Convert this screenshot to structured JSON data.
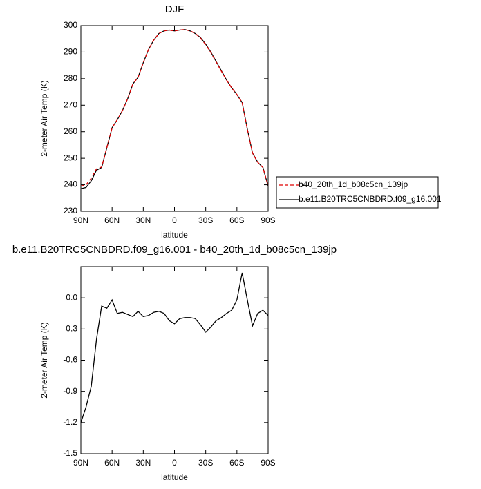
{
  "chart_data": [
    {
      "type": "line",
      "title": "DJF",
      "xlabel": "latitude",
      "ylabel": "2-meter Air Temp (K)",
      "x": [
        90,
        85,
        80,
        75,
        70,
        65,
        60,
        55,
        50,
        45,
        40,
        35,
        30,
        25,
        20,
        15,
        10,
        5,
        0,
        -5,
        -10,
        -15,
        -20,
        -25,
        -30,
        -35,
        -40,
        -45,
        -50,
        -55,
        -60,
        -65,
        -70,
        -75,
        -80,
        -85,
        -90
      ],
      "series": [
        {
          "name": "b40_20th_1d_b08c5cn_139jp",
          "color": "#e00000",
          "dash": true,
          "values": [
            239.5,
            240,
            242.5,
            246,
            246.7,
            254,
            261.5,
            264.5,
            268,
            272.5,
            278,
            280.5,
            286,
            291,
            294.5,
            297,
            298,
            298.3,
            298,
            298.3,
            298.5,
            298,
            297,
            295.3,
            292.8,
            289.8,
            286.3,
            282.8,
            279.5,
            276.5,
            274,
            271,
            261,
            252,
            248.5,
            246.5,
            239.5
          ]
        },
        {
          "name": "b.e11.B20TRC5CNBDRD.f09_g16.001",
          "color": "#000000",
          "dash": false,
          "values": [
            238.5,
            239,
            241.5,
            245.5,
            246.5,
            254,
            261.5,
            264.5,
            268,
            272.5,
            278,
            280.5,
            286,
            291,
            294.5,
            297,
            298,
            298.3,
            298,
            298.3,
            298.5,
            298,
            297,
            295.5,
            293,
            290,
            286.5,
            283,
            279.5,
            276.5,
            274,
            271,
            261,
            252,
            248.5,
            246.5,
            239.5
          ]
        }
      ],
      "xlim": [
        90,
        -90
      ],
      "xticks": [
        {
          "value": 90,
          "label": "90N"
        },
        {
          "value": 60,
          "label": "60N"
        },
        {
          "value": 30,
          "label": "30N"
        },
        0,
        {
          "value": -30,
          "label": "30S"
        },
        {
          "value": -60,
          "label": "60S"
        },
        {
          "value": -90,
          "label": "90S"
        }
      ],
      "ylim": [
        230,
        300
      ],
      "yticks": [
        230,
        240,
        250,
        260,
        270,
        280,
        290,
        300
      ],
      "legend": "right"
    },
    {
      "type": "line",
      "title": "b.e11.B20TRC5CNBDRD.f09_g16.001 - b40_20th_1d_b08c5cn_139jp",
      "xlabel": "latitude",
      "ylabel": "2-meter Air Temp (K)",
      "x": [
        90,
        85,
        80,
        75,
        70,
        65,
        60,
        55,
        50,
        45,
        40,
        35,
        30,
        25,
        20,
        15,
        10,
        5,
        0,
        -5,
        -10,
        -15,
        -20,
        -25,
        -30,
        -35,
        -40,
        -45,
        -50,
        -55,
        -60,
        -65,
        -70,
        -75,
        -80,
        -85,
        -90
      ],
      "series": [
        {
          "color": "#000000",
          "dash": false,
          "values": [
            -1.2,
            -1.05,
            -0.85,
            -0.4,
            -0.08,
            -0.1,
            -0.02,
            -0.15,
            -0.14,
            -0.16,
            -0.18,
            -0.13,
            -0.18,
            -0.17,
            -0.14,
            -0.13,
            -0.15,
            -0.22,
            -0.25,
            -0.2,
            -0.19,
            -0.19,
            -0.2,
            -0.26,
            -0.33,
            -0.28,
            -0.22,
            -0.19,
            -0.15,
            -0.12,
            -0.02,
            0.24,
            -0.02,
            -0.27,
            -0.15,
            -0.12,
            -0.17
          ]
        }
      ],
      "xlim": [
        90,
        -90
      ],
      "xticks": [
        {
          "value": 90,
          "label": "90N"
        },
        {
          "value": 60,
          "label": "60N"
        },
        {
          "value": 30,
          "label": "30N"
        },
        0,
        {
          "value": -30,
          "label": "30S"
        },
        {
          "value": -60,
          "label": "60S"
        },
        {
          "value": -90,
          "label": "90S"
        }
      ],
      "ylim": [
        -1.5,
        0.3
      ],
      "yticks": [
        -1.5,
        -1.2,
        -0.9,
        -0.6,
        -0.3,
        {
          "value": 0,
          "label": "0.0"
        }
      ]
    }
  ]
}
